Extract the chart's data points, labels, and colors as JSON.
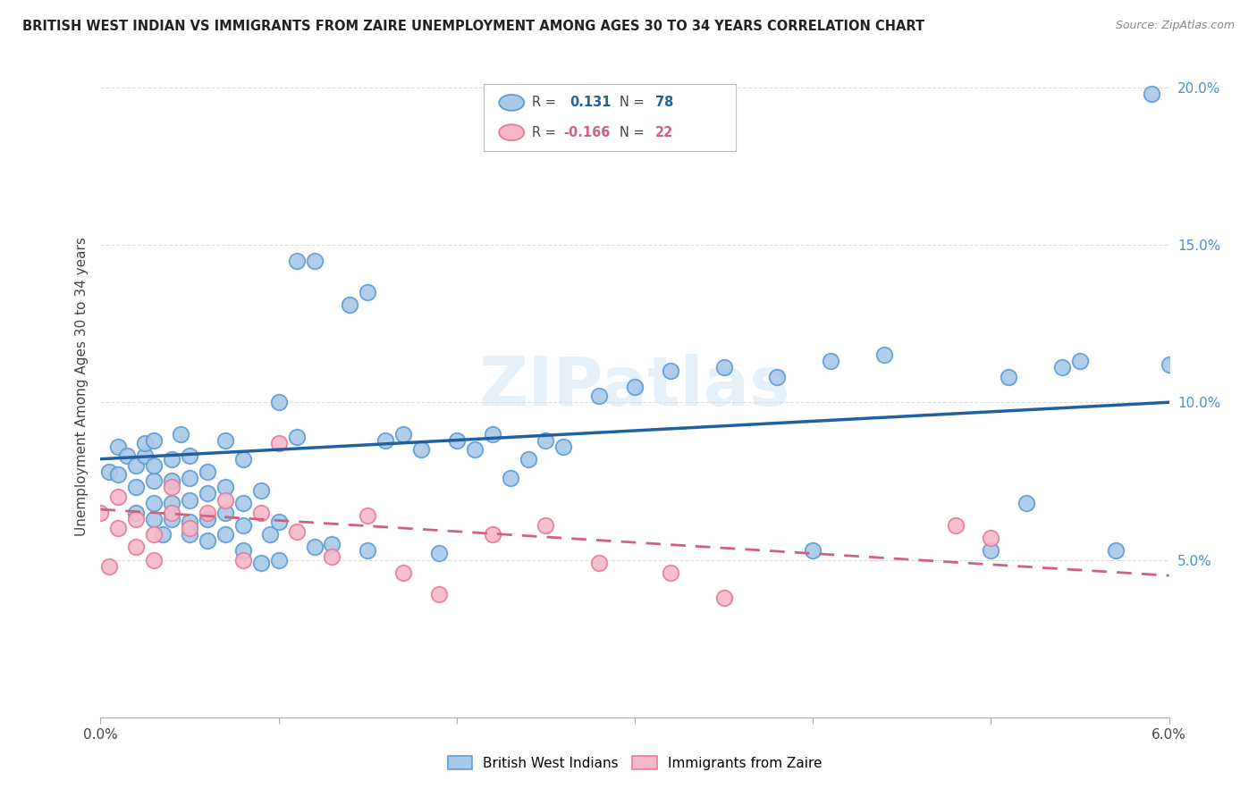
{
  "title": "BRITISH WEST INDIAN VS IMMIGRANTS FROM ZAIRE UNEMPLOYMENT AMONG AGES 30 TO 34 YEARS CORRELATION CHART",
  "source": "Source: ZipAtlas.com",
  "ylabel": "Unemployment Among Ages 30 to 34 years",
  "xlim": [
    0.0,
    0.06
  ],
  "ylim": [
    0.0,
    0.21
  ],
  "xtick_vals": [
    0.0,
    0.01,
    0.02,
    0.03,
    0.04,
    0.05,
    0.06
  ],
  "xticklabels": [
    "0.0%",
    "",
    "",
    "",
    "",
    "",
    "6.0%"
  ],
  "yticks_right": [
    0.05,
    0.1,
    0.15,
    0.2
  ],
  "ytick_right_labels": [
    "5.0%",
    "10.0%",
    "15.0%",
    "20.0%"
  ],
  "legend_label_blue": "British West Indians",
  "legend_label_pink": "Immigrants from Zaire",
  "blue_color": "#a8c8e8",
  "blue_edge": "#5b9bd5",
  "pink_color": "#f4b8c8",
  "pink_edge": "#e8799a",
  "blue_line_color": "#2060a0",
  "pink_line_color": "#d06080",
  "watermark": "ZIPatlas",
  "blue_scatter_x": [
    0.0005,
    0.001,
    0.001,
    0.0015,
    0.002,
    0.002,
    0.002,
    0.0025,
    0.0025,
    0.003,
    0.003,
    0.003,
    0.003,
    0.003,
    0.0035,
    0.004,
    0.004,
    0.004,
    0.004,
    0.0045,
    0.005,
    0.005,
    0.005,
    0.005,
    0.005,
    0.006,
    0.006,
    0.006,
    0.006,
    0.007,
    0.007,
    0.007,
    0.007,
    0.008,
    0.008,
    0.008,
    0.008,
    0.009,
    0.009,
    0.0095,
    0.01,
    0.01,
    0.01,
    0.011,
    0.011,
    0.012,
    0.012,
    0.013,
    0.014,
    0.015,
    0.015,
    0.016,
    0.017,
    0.018,
    0.019,
    0.02,
    0.021,
    0.022,
    0.023,
    0.024,
    0.025,
    0.026,
    0.028,
    0.03,
    0.032,
    0.035,
    0.038,
    0.04,
    0.041,
    0.044,
    0.05,
    0.051,
    0.052,
    0.054,
    0.055,
    0.057,
    0.059,
    0.06
  ],
  "blue_scatter_y": [
    0.078,
    0.077,
    0.086,
    0.083,
    0.065,
    0.073,
    0.08,
    0.083,
    0.087,
    0.063,
    0.068,
    0.075,
    0.08,
    0.088,
    0.058,
    0.063,
    0.068,
    0.075,
    0.082,
    0.09,
    0.058,
    0.062,
    0.069,
    0.076,
    0.083,
    0.056,
    0.063,
    0.071,
    0.078,
    0.058,
    0.065,
    0.073,
    0.088,
    0.053,
    0.061,
    0.068,
    0.082,
    0.049,
    0.072,
    0.058,
    0.05,
    0.062,
    0.1,
    0.089,
    0.145,
    0.054,
    0.145,
    0.055,
    0.131,
    0.053,
    0.135,
    0.088,
    0.09,
    0.085,
    0.052,
    0.088,
    0.085,
    0.09,
    0.076,
    0.082,
    0.088,
    0.086,
    0.102,
    0.105,
    0.11,
    0.111,
    0.108,
    0.053,
    0.113,
    0.115,
    0.053,
    0.108,
    0.068,
    0.111,
    0.113,
    0.053,
    0.198,
    0.112
  ],
  "pink_scatter_x": [
    0.0,
    0.0005,
    0.001,
    0.001,
    0.002,
    0.002,
    0.003,
    0.003,
    0.004,
    0.004,
    0.005,
    0.006,
    0.007,
    0.008,
    0.009,
    0.01,
    0.011,
    0.013,
    0.015,
    0.017,
    0.019,
    0.022,
    0.025,
    0.028,
    0.032,
    0.035,
    0.048,
    0.05
  ],
  "pink_scatter_y": [
    0.065,
    0.048,
    0.06,
    0.07,
    0.054,
    0.063,
    0.05,
    0.058,
    0.065,
    0.073,
    0.06,
    0.065,
    0.069,
    0.05,
    0.065,
    0.087,
    0.059,
    0.051,
    0.064,
    0.046,
    0.039,
    0.058,
    0.061,
    0.049,
    0.046,
    0.038,
    0.061,
    0.057
  ],
  "blue_trend_x0": 0.0,
  "blue_trend_y0": 0.082,
  "blue_trend_x1": 0.06,
  "blue_trend_y1": 0.1,
  "pink_trend_x0": 0.0,
  "pink_trend_y0": 0.066,
  "pink_trend_x1": 0.06,
  "pink_trend_y1": 0.045
}
